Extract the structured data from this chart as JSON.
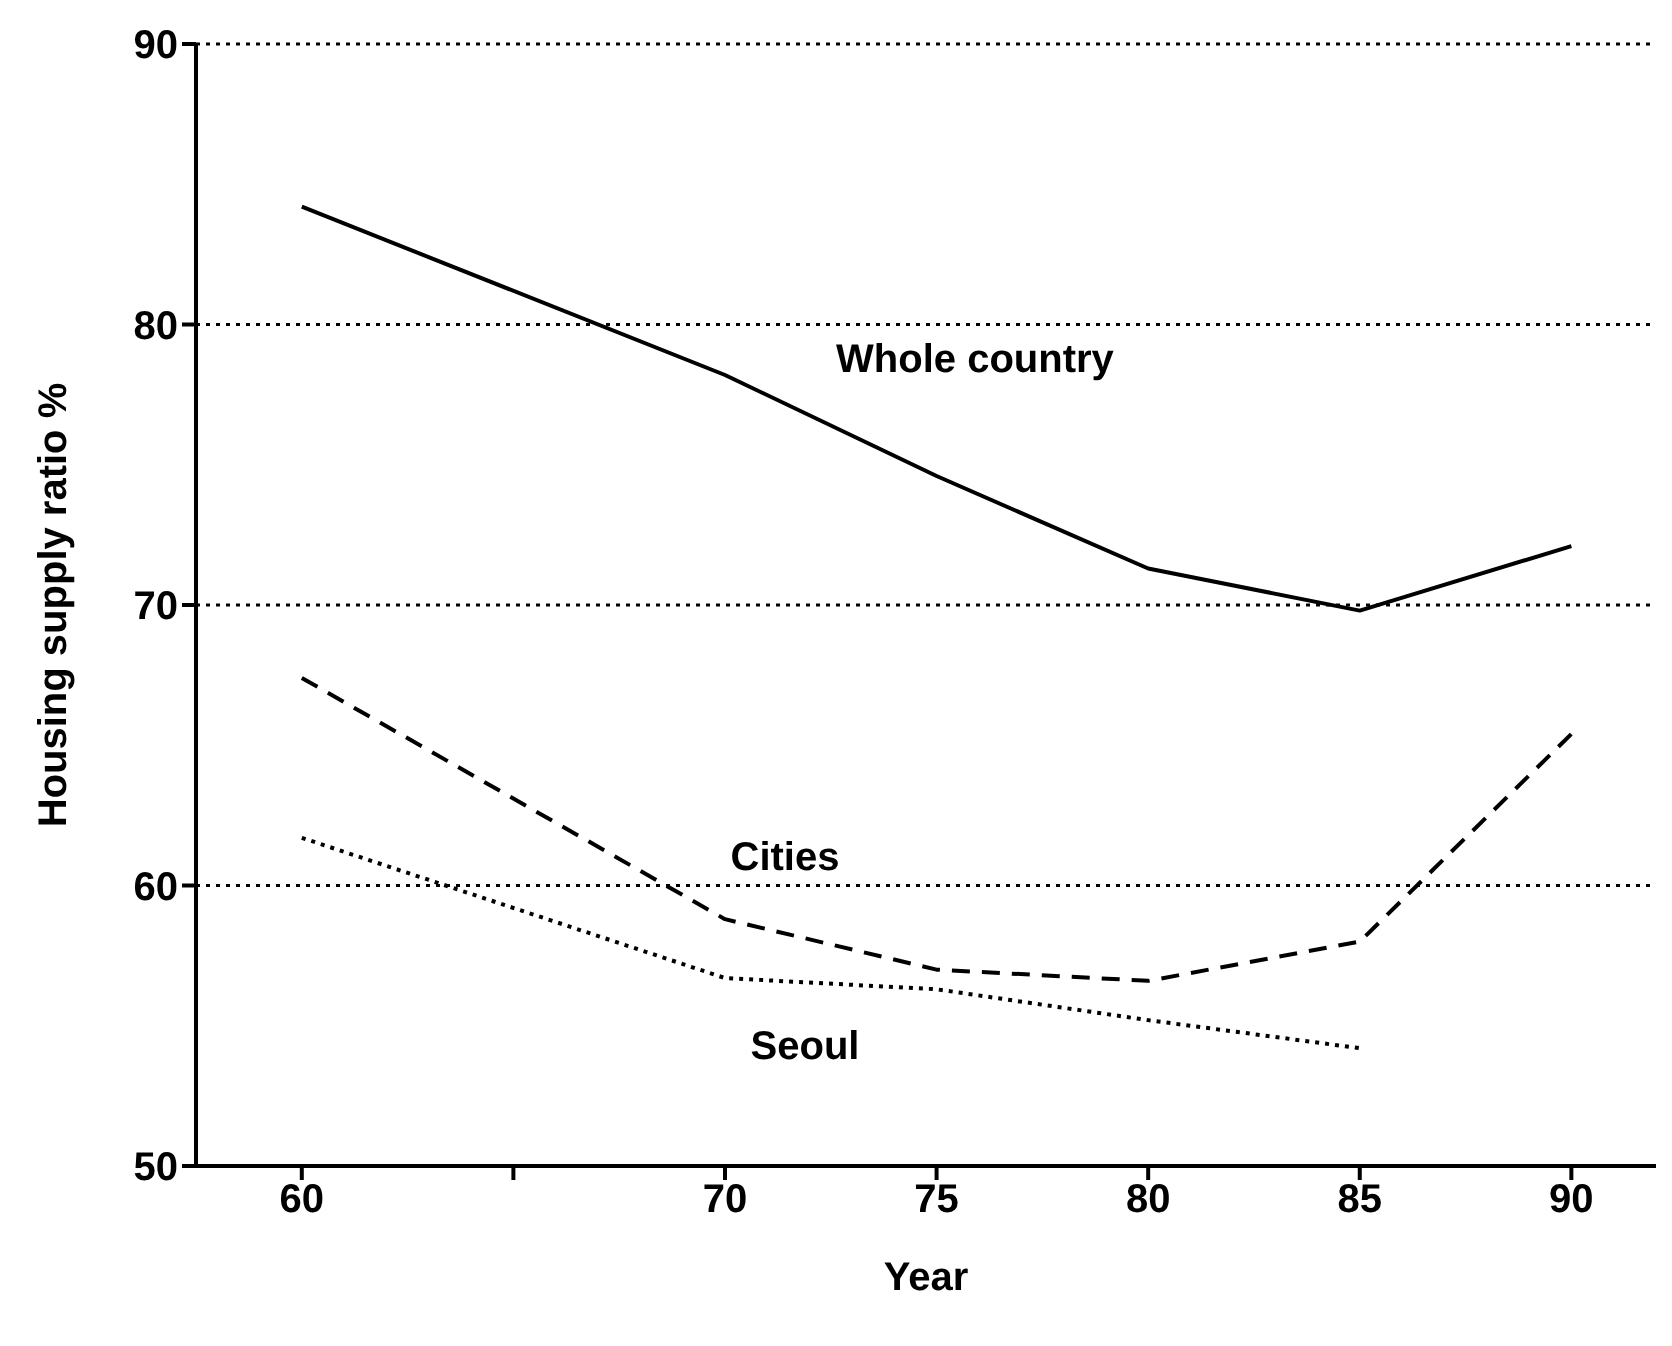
{
  "chart_data": {
    "type": "line",
    "xlabel": "Year",
    "ylabel": "Housing supply ratio %",
    "xlim": [
      57.5,
      92
    ],
    "xticks": [
      60,
      {
        "value": 65,
        "label": null
      },
      70,
      75,
      80,
      85,
      90
    ],
    "ylim": [
      50,
      90
    ],
    "yticks": [
      50,
      60,
      70,
      80,
      90
    ],
    "grid": "y",
    "marker": "none",
    "series": [
      {
        "name": "Whole country",
        "color": "#000000",
        "line_style": "solid",
        "x": [
          60,
          70,
          75,
          80,
          85,
          90
        ],
        "values": [
          84.2,
          78.2,
          74.6,
          71.3,
          69.8,
          72.1
        ]
      },
      {
        "name": "Cities",
        "color": "#000000",
        "line_style": "dashed",
        "x": [
          60,
          70,
          75,
          80,
          85,
          90
        ],
        "values": [
          67.4,
          58.8,
          57.0,
          56.6,
          58.0,
          65.4
        ]
      },
      {
        "name": "Seoul",
        "color": "#000000",
        "line_style": "dotted",
        "x": [
          60,
          70,
          75,
          80,
          85
        ],
        "values": [
          61.7,
          56.7,
          56.3,
          55.2,
          54.2
        ]
      }
    ]
  }
}
